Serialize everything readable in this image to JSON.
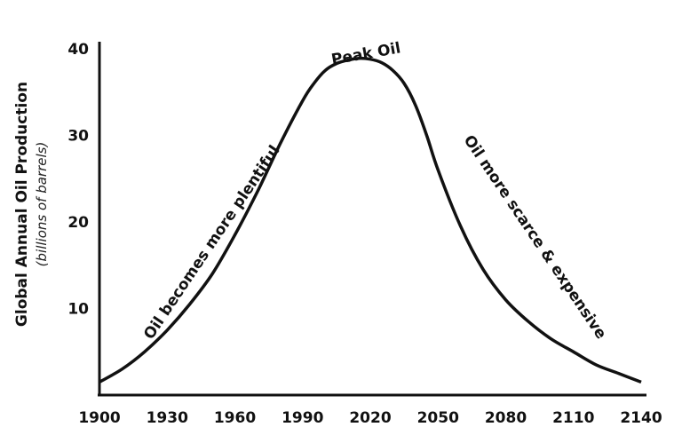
{
  "chart_data": {
    "type": "line",
    "ylabel": "Global Annual Oil Production",
    "ylabel_sub": "(billions of barrels)",
    "xlim": [
      1900,
      2140
    ],
    "ylim": [
      0,
      40
    ],
    "x_ticks": [
      1900,
      1930,
      1960,
      1990,
      2020,
      2050,
      2080,
      2110,
      2140
    ],
    "y_ticks": [
      10,
      20,
      30,
      40
    ],
    "grid": false,
    "series": [
      {
        "x": [
          1900,
          1910,
          1920,
          1930,
          1940,
          1950,
          1960,
          1970,
          1980,
          1990,
          1995,
          2000,
          2005,
          2010,
          2015,
          2020,
          2025,
          2030,
          2035,
          2040,
          2045,
          2050,
          2060,
          2070,
          2080,
          2090,
          2100,
          2110,
          2120,
          2130,
          2140
        ],
        "values": [
          1.5,
          3,
          5,
          7.5,
          10.5,
          14,
          18.5,
          23.5,
          29,
          34,
          36,
          37.5,
          38.3,
          38.7,
          38.9,
          38.8,
          38.4,
          37.5,
          36,
          33.5,
          30,
          26,
          19.5,
          14.5,
          11,
          8.5,
          6.5,
          5,
          3.5,
          2.5,
          1.5
        ],
        "color": "#111111"
      }
    ],
    "annotations": [
      {
        "text": "Peak Oil",
        "x": 2018,
        "y": 39.8
      },
      {
        "text": "Oil becomes more plentiful",
        "x": 1957,
        "y": 17.5
      },
      {
        "text": "Oil more scarce & expensive",
        "x": 2089,
        "y": 17.5
      }
    ]
  }
}
